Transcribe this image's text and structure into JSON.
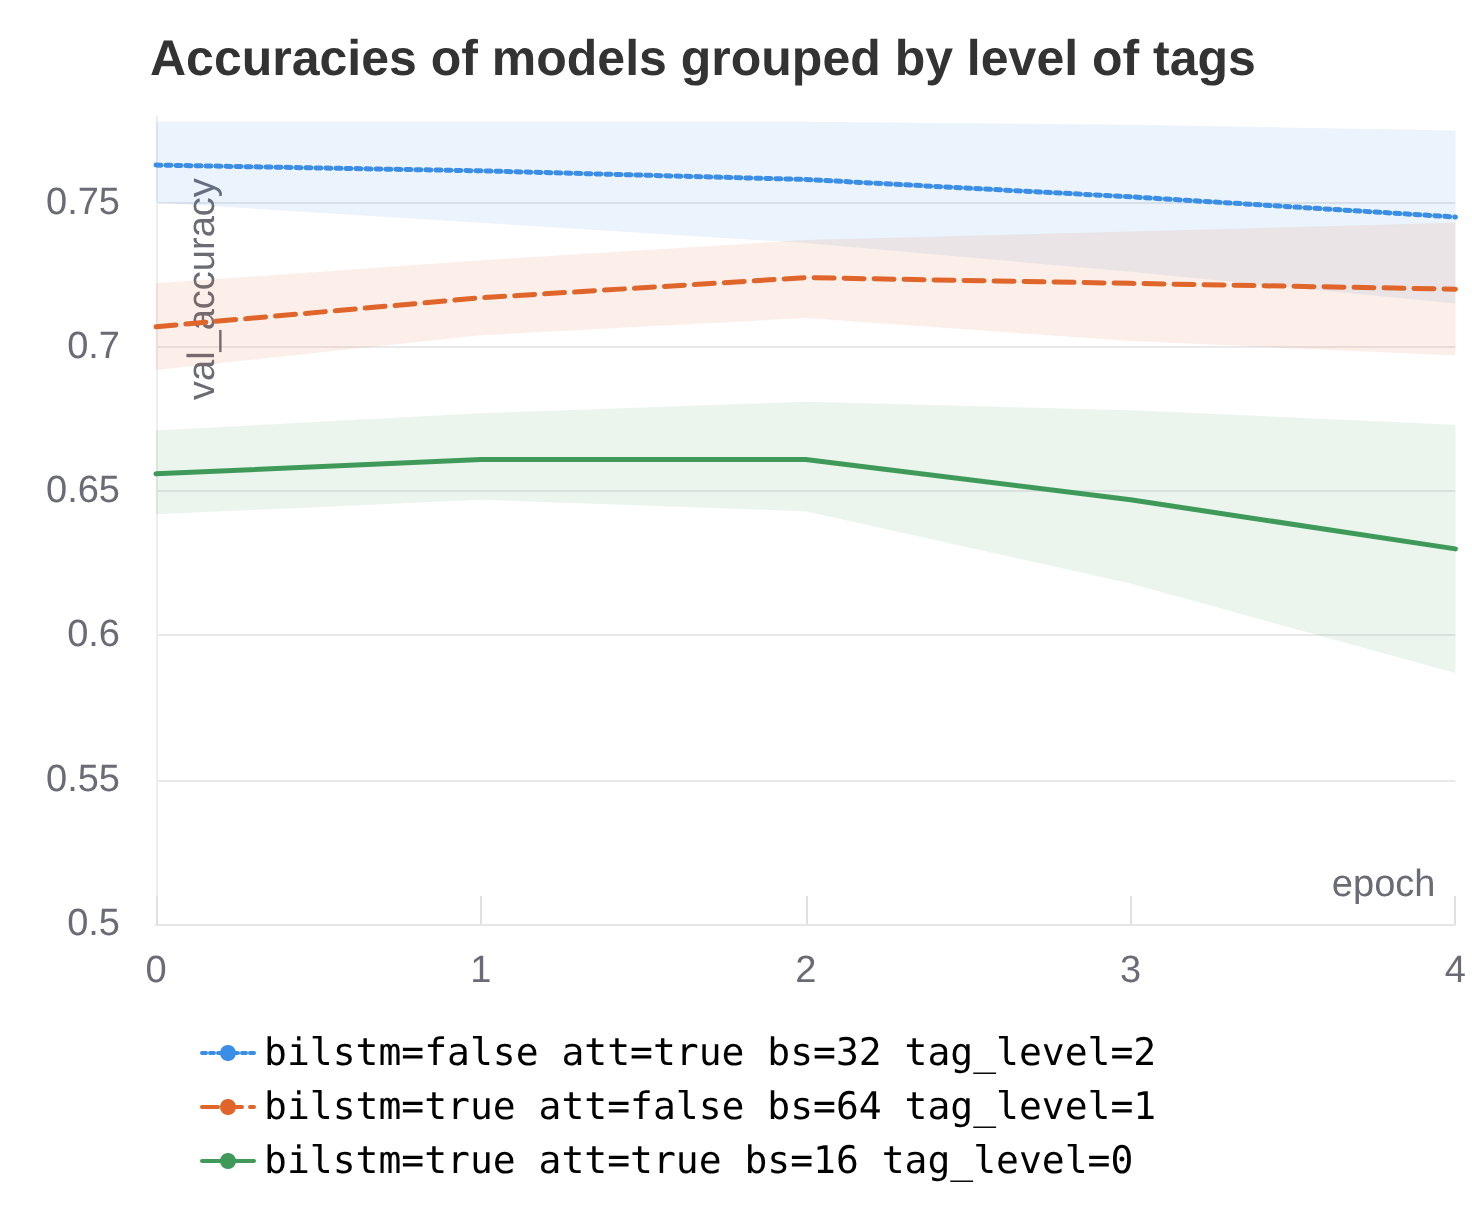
{
  "chart_data": {
    "type": "line",
    "title": "Accuracies of models grouped by level of tags",
    "xlabel": "epoch",
    "ylabel": "val_accuracy",
    "x": [
      0,
      1,
      2,
      3,
      4
    ],
    "xlim": [
      0,
      4
    ],
    "xticks": [
      0,
      1,
      2,
      3,
      4
    ],
    "ylim": [
      0.5,
      0.78
    ],
    "yticks": [
      0.5,
      0.55,
      0.6,
      0.65,
      0.7,
      0.75
    ],
    "grid": "y",
    "legend": "bottom",
    "marker": "none",
    "series": [
      {
        "name": "bilstm=false att=true bs=32 tag_level=2",
        "color": "#3a8ee6",
        "line_style": "dotted",
        "values": [
          0.763,
          0.761,
          0.758,
          0.752,
          0.745
        ],
        "lower": [
          0.75,
          0.743,
          0.736,
          0.726,
          0.715
        ],
        "upper": [
          0.778,
          0.778,
          0.778,
          0.777,
          0.775
        ]
      },
      {
        "name": "bilstm=true att=false bs=64 tag_level=1",
        "color": "#e0652a",
        "line_style": "dashed",
        "values": [
          0.707,
          0.717,
          0.724,
          0.722,
          0.72
        ],
        "lower": [
          0.692,
          0.704,
          0.71,
          0.702,
          0.697
        ],
        "upper": [
          0.722,
          0.73,
          0.737,
          0.74,
          0.743
        ]
      },
      {
        "name": "bilstm=true att=true bs=16 tag_level=0",
        "color": "#3f9a5a",
        "line_style": "solid",
        "values": [
          0.656,
          0.661,
          0.661,
          0.647,
          0.63
        ],
        "lower": [
          0.642,
          0.647,
          0.643,
          0.618,
          0.587
        ],
        "upper": [
          0.671,
          0.677,
          0.681,
          0.678,
          0.673
        ]
      }
    ]
  }
}
